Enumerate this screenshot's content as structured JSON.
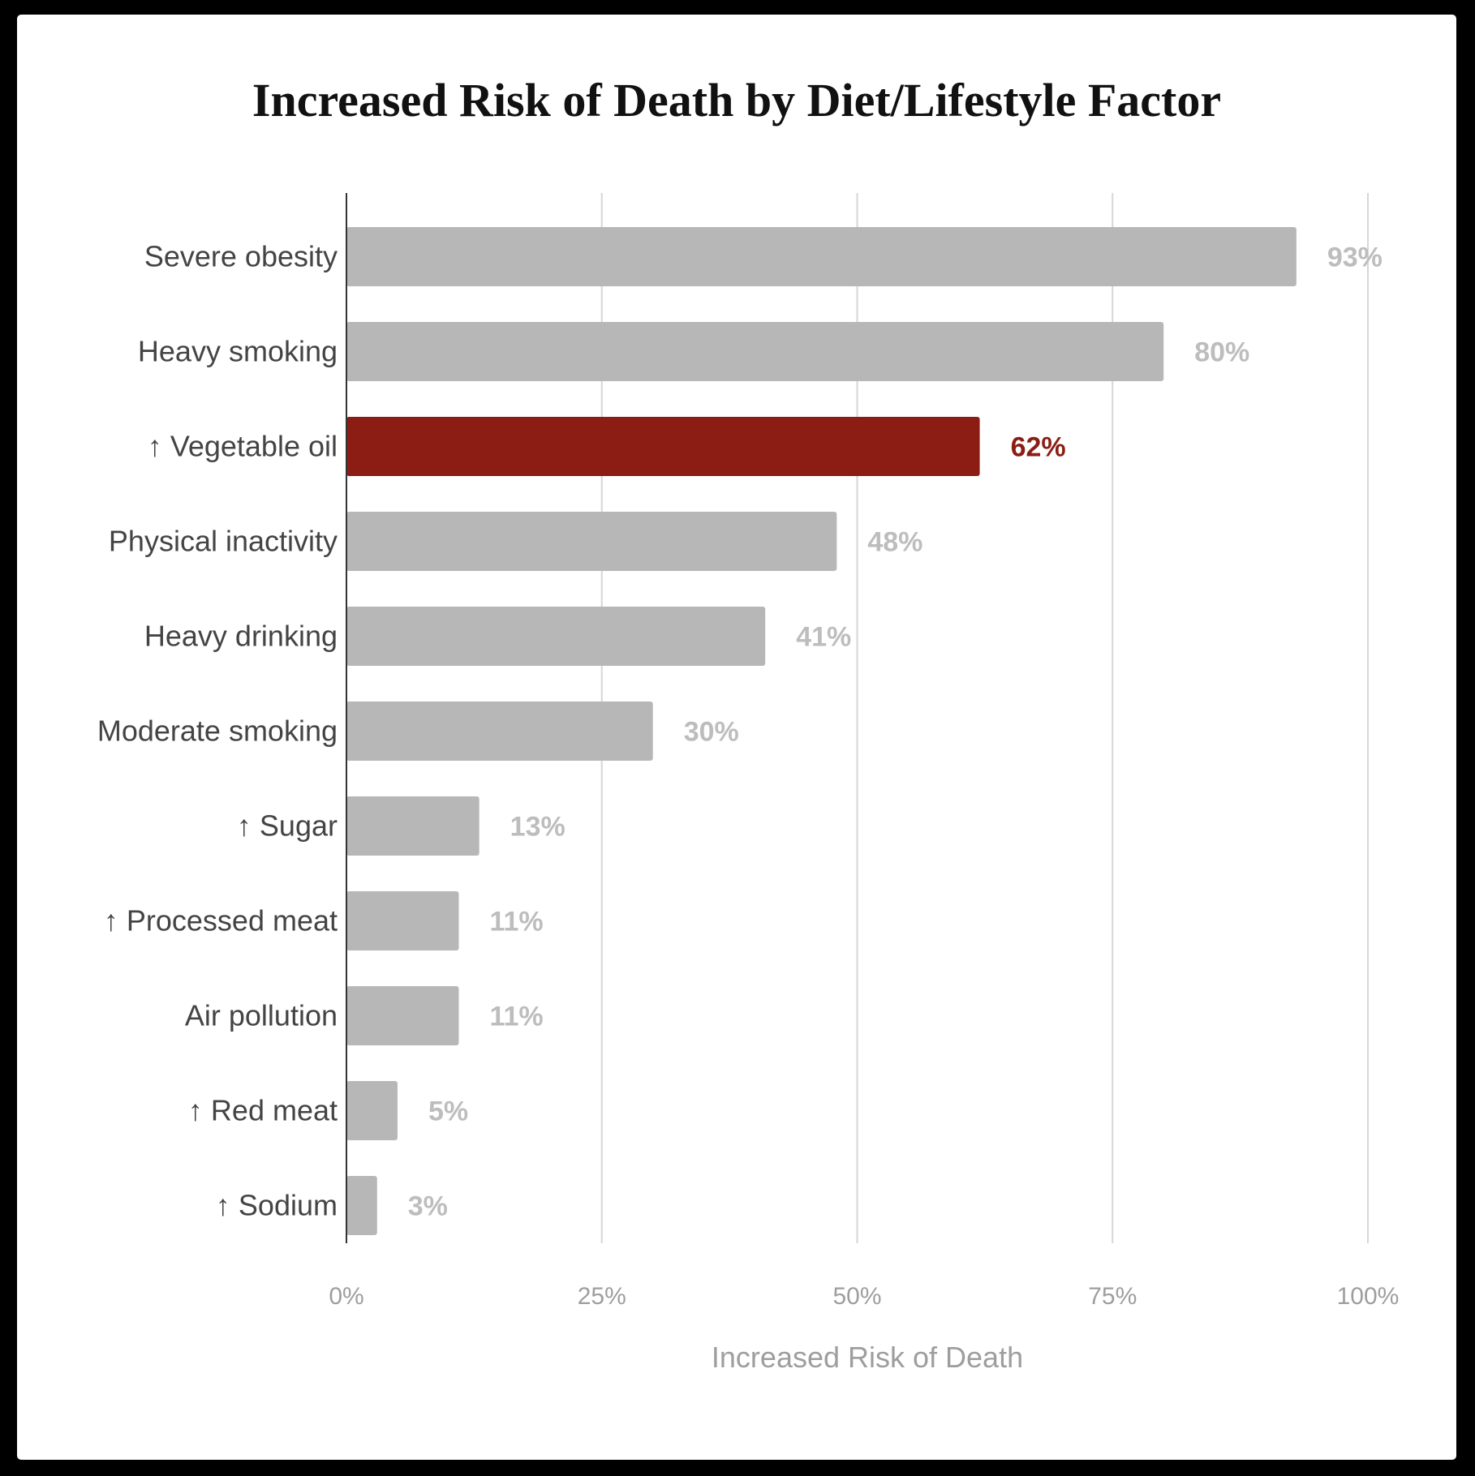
{
  "chart_data": {
    "type": "bar",
    "orientation": "horizontal",
    "title": "Increased Risk of Death by Diet/Lifestyle Factor",
    "xlabel": "Increased Risk of Death",
    "ylabel": "",
    "xlim": [
      0,
      100
    ],
    "ticks": [
      "0%",
      "25%",
      "50%",
      "75%",
      "100%"
    ],
    "tick_values": [
      0,
      25,
      50,
      75,
      100
    ],
    "grid": true,
    "categories": [
      "Severe obesity",
      "Heavy smoking",
      "↑ Vegetable oil",
      "Physical inactivity",
      "Heavy drinking",
      "Moderate smoking",
      "↑ Sugar",
      "↑ Processed meat",
      "Air pollution",
      "↑ Red meat",
      "↑ Sodium"
    ],
    "values": [
      93,
      80,
      62,
      48,
      41,
      30,
      13,
      11,
      11,
      5,
      3
    ],
    "value_labels": [
      "93%",
      "80%",
      "62%",
      "48%",
      "41%",
      "30%",
      "13%",
      "11%",
      "11%",
      "5%",
      "3%"
    ],
    "highlight_index": 2,
    "colors": {
      "bar": "#b7b7b7",
      "highlight": "#8b1d14",
      "value_label": "#bdbdbd",
      "grid": "#d6d6d6",
      "axis": "#333333"
    }
  }
}
